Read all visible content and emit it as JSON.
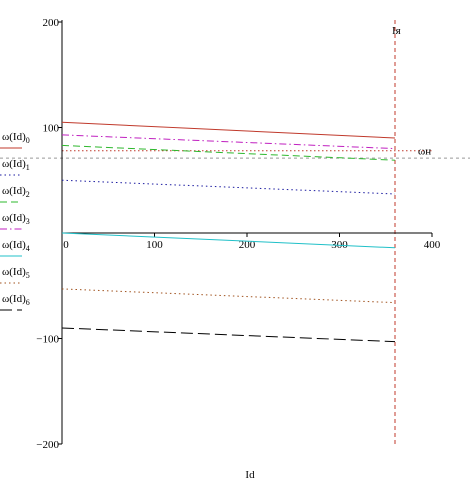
{
  "chart_data": {
    "type": "line",
    "xlabel": "Id",
    "xlim": [
      0,
      400
    ],
    "ylim": [
      -200,
      200
    ],
    "x_ticks": [
      {
        "value": 0,
        "label": "0"
      },
      {
        "value": 100,
        "label": "100"
      },
      {
        "value": 200,
        "label": "200"
      },
      {
        "value": 300,
        "label": "300"
      },
      {
        "value": 400,
        "label": "400"
      }
    ],
    "y_ticks": [
      {
        "value": 200,
        "label": "200"
      },
      {
        "value": 100,
        "label": "100"
      },
      {
        "value": -100,
        "label": "−100"
      },
      {
        "value": -200,
        "label": "−200"
      }
    ],
    "series": [
      {
        "name": "ω(Id)",
        "subscript": "0",
        "color": "#c0392b",
        "dash": "solid",
        "x": [
          0,
          360
        ],
        "y": [
          105,
          90
        ]
      },
      {
        "name": "ω(Id)",
        "subscript": "1",
        "color": "#1a1aa0",
        "dash": "dot",
        "x": [
          0,
          360
        ],
        "y": [
          50,
          37
        ]
      },
      {
        "name": "ω(Id)",
        "subscript": "2",
        "color": "#2eb82e",
        "dash": "dash",
        "x": [
          0,
          360
        ],
        "y": [
          83,
          69
        ]
      },
      {
        "name": "ω(Id)",
        "subscript": "3",
        "color": "#c020c0",
        "dash": "dashdot",
        "x": [
          0,
          360
        ],
        "y": [
          93,
          80
        ]
      },
      {
        "name": "ω(Id)",
        "subscript": "4",
        "color": "#20c0c8",
        "dash": "solid",
        "x": [
          0,
          360
        ],
        "y": [
          0,
          -14
        ]
      },
      {
        "name": "ω(Id)",
        "subscript": "5",
        "color": "#a0521e",
        "dash": "dot",
        "x": [
          0,
          360
        ],
        "y": [
          -53,
          -66
        ]
      },
      {
        "name": "ω(Id)",
        "subscript": "6",
        "color": "#000000",
        "dash": "longdash",
        "x": [
          0,
          360
        ],
        "y": [
          -90,
          -103
        ]
      }
    ],
    "reference_lines": {
      "horizontal_dashed": {
        "value": 71,
        "color": "#999999"
      },
      "horizontal_dotted": {
        "value": 78,
        "label": "ωн",
        "color": "#c0392b"
      },
      "vertical": {
        "value": 360,
        "label": "Iя",
        "color": "#c0392b"
      }
    }
  }
}
